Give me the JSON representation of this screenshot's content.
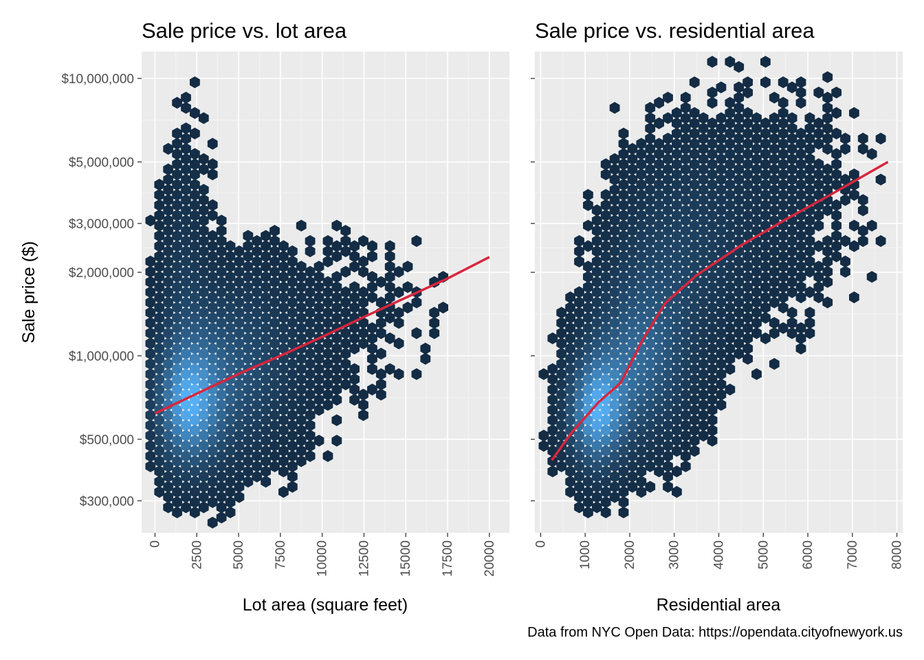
{
  "figure": {
    "y_label": "Sale price ($)",
    "caption": "Data from NYC Open Data: https://opendata.cityofnewyork.us"
  },
  "colors": {
    "panel_background": "#ebebeb",
    "grid_major": "#ffffff",
    "hex_low": "#132b43",
    "hex_high": "#56b1f7",
    "trend_line": "#d7263d"
  },
  "chart_data": [
    {
      "type": "hexbin",
      "title": "Sale price vs. lot area",
      "xlabel": "Lot area (square feet)",
      "ylabel": "Sale price ($)",
      "y_scale": "log10",
      "xlim": [
        -800,
        21200
      ],
      "ylim": [
        230000,
        12500000
      ],
      "x_ticks": [
        0,
        2500,
        5000,
        7500,
        10000,
        12500,
        15000,
        17500,
        20000
      ],
      "x_tick_labels": [
        "0",
        "2500",
        "5000",
        "7500",
        "10000",
        "12500",
        "15000",
        "17500",
        "20000"
      ],
      "y_ticks": [
        300000,
        500000,
        1000000,
        2000000,
        3000000,
        5000000,
        10000000
      ],
      "y_tick_labels": [
        "$300,000",
        "$500,000",
        "$1,000,000",
        "$2,000,000",
        "$3,000,000",
        "$5,000,000",
        "$10,000,000"
      ],
      "trend": {
        "type": "line",
        "x": [
          0,
          2500,
          5000,
          7500,
          10000,
          12500,
          15000,
          17500,
          20000
        ],
        "y": [
          620000,
          730000,
          860000,
          1000000,
          1170000,
          1380000,
          1620000,
          1900000,
          2270000
        ]
      },
      "clusters": [
        {
          "x": 2000,
          "y": 650000,
          "sx": 1300,
          "sy": 0.15,
          "w": 0.5
        },
        {
          "x": 4200,
          "y": 850000,
          "sx": 2600,
          "sy": 0.22,
          "w": 0.3
        },
        {
          "x": 1700,
          "y": 2000000,
          "sx": 1000,
          "sy": 0.35,
          "w": 0.12
        },
        {
          "x": 9000,
          "y": 1300000,
          "sx": 3500,
          "sy": 0.22,
          "w": 0.06
        },
        {
          "x": 15500,
          "y": 1600000,
          "sx": 2500,
          "sy": 0.17,
          "w": 0.02
        }
      ]
    },
    {
      "type": "hexbin",
      "title": "Sale price vs. residential area",
      "xlabel": "Residential area",
      "ylabel": "Sale price ($)",
      "y_scale": "log10",
      "xlim": [
        -130,
        8130
      ],
      "ylim": [
        230000,
        12500000
      ],
      "x_ticks": [
        0,
        1000,
        2000,
        3000,
        4000,
        5000,
        6000,
        7000,
        8000
      ],
      "x_tick_labels": [
        "0",
        "1000",
        "2000",
        "3000",
        "4000",
        "5000",
        "6000",
        "7000",
        "8000"
      ],
      "y_ticks": [
        300000,
        500000,
        1000000,
        2000000,
        3000000,
        5000000,
        10000000
      ],
      "y_tick_labels": [
        "$300,000",
        "$500,000",
        "$1,000,000",
        "$2,000,000",
        "$3,000,000",
        "$5,000,000",
        "$10,000,000"
      ],
      "trend": {
        "type": "line",
        "x": [
          250,
          700,
          1000,
          1300,
          1800,
          2300,
          2800,
          3500,
          4500,
          5500,
          6500,
          7800
        ],
        "y": [
          420000,
          530000,
          600000,
          680000,
          800000,
          1150000,
          1550000,
          1950000,
          2500000,
          3100000,
          3800000,
          5000000
        ]
      },
      "clusters": [
        {
          "x": 1250,
          "y": 620000,
          "sx": 450,
          "sy": 0.14,
          "w": 0.5
        },
        {
          "x": 2200,
          "y": 950000,
          "sx": 750,
          "sy": 0.2,
          "w": 0.3
        },
        {
          "x": 3000,
          "y": 2300000,
          "sx": 1000,
          "sy": 0.25,
          "w": 0.14
        },
        {
          "x": 5000,
          "y": 3500000,
          "sx": 1500,
          "sy": 0.3,
          "w": 0.06
        }
      ]
    }
  ]
}
